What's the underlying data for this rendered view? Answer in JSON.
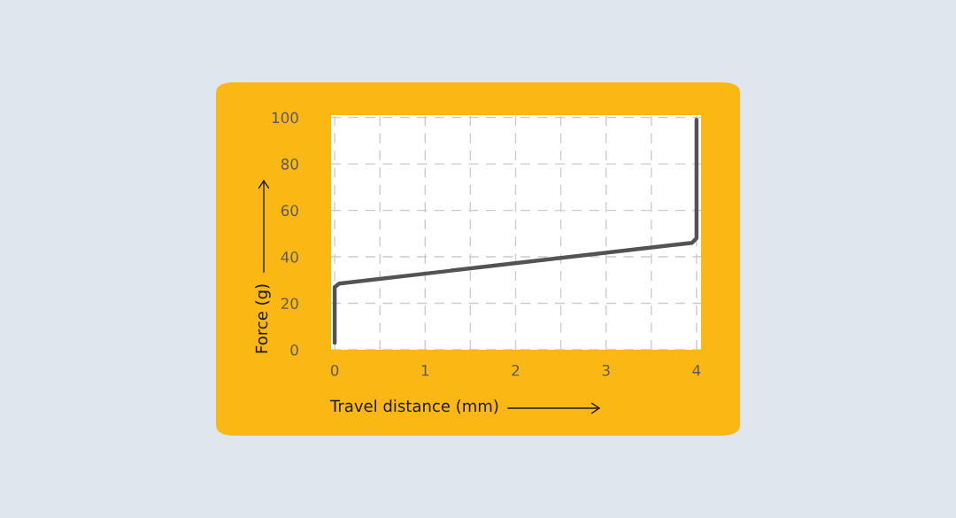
{
  "chart_data": {
    "type": "line",
    "xlabel": "Travel distance (mm)",
    "ylabel": "Force (g)",
    "x": [
      0,
      0,
      0.05,
      3.95,
      4,
      4
    ],
    "series": [
      {
        "color": "#535353",
        "values": [
          3,
          27,
          28.5,
          46,
          48,
          99
        ]
      }
    ],
    "xlim": [
      -0.04,
      4.05
    ],
    "ylim": [
      0,
      101
    ],
    "xticks": [
      0,
      {
        "value": 0.5,
        "label": null
      },
      1,
      {
        "value": 1.5,
        "label": null
      },
      2,
      {
        "value": 2.5,
        "label": null
      },
      3,
      {
        "value": 3.5,
        "label": null
      },
      4
    ],
    "yticks": [
      0,
      20,
      40,
      60,
      80,
      100
    ],
    "grid": true,
    "marker": "none",
    "line_style": "solid"
  }
}
